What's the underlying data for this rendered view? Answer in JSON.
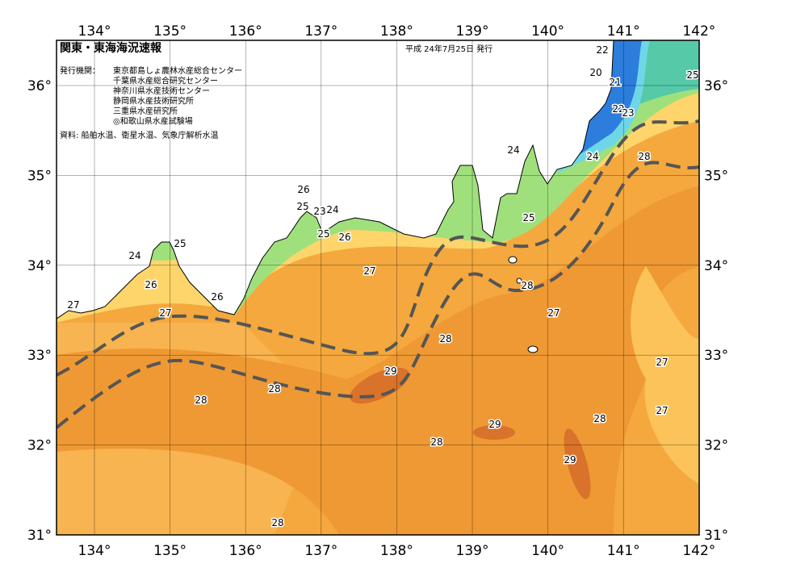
{
  "header": {
    "title": "関東・東海海況速報",
    "date": "平成 24年7月25日 発行",
    "issuer_label": "発行機関：",
    "issuers": [
      "東京都島しょ農林水産総合センター",
      "千葉県水産総合研究センター",
      "神奈川県水産技術センター",
      "静岡県水産技術研究所",
      "三重県水産研究所",
      "◎和歌山県水産試験場"
    ],
    "source": "資料: 船舶水温、衛星水温、気象庁解析水温"
  },
  "axes": {
    "lon_labels": [
      "134°",
      "135°",
      "136°",
      "137°",
      "138°",
      "139°",
      "140°",
      "141°",
      "142°"
    ],
    "lat_labels": [
      "31°",
      "32°",
      "33°",
      "34°",
      "35°",
      "36°"
    ]
  },
  "contour_labels": [
    "22",
    "20",
    "21",
    "25",
    "22",
    "23",
    "24",
    "24",
    "28",
    "26",
    "25",
    "23",
    "24",
    "25",
    "26",
    "25",
    "25",
    "24",
    "26",
    "27",
    "28",
    "26",
    "27",
    "27",
    "27",
    "28",
    "27",
    "29",
    "28",
    "28",
    "27",
    "28",
    "29",
    "28",
    "29",
    "28"
  ]
}
